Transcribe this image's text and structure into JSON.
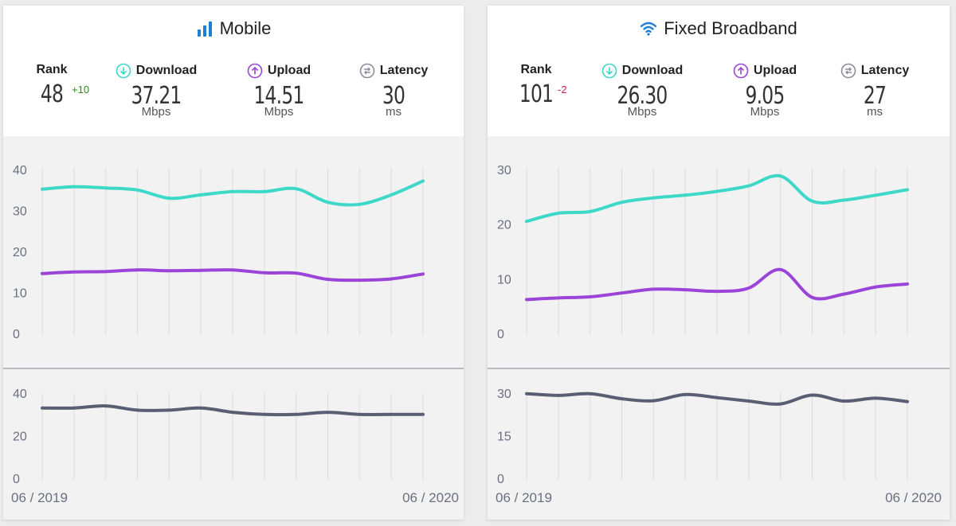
{
  "colors": {
    "download": "#3ed8c8",
    "upload": "#9b45d8",
    "latency": "#5a5e72",
    "rank_up": "#2e8b1a",
    "rank_down": "#e0143c",
    "icon_blue": "#1e7fd6"
  },
  "mobile": {
    "title": "Mobile",
    "icon": "signal-bars-icon",
    "rank_label": "Rank",
    "rank": "48",
    "rank_change": "+10",
    "download_label": "Download",
    "download": "37.21",
    "download_unit": "Mbps",
    "upload_label": "Upload",
    "upload": "14.51",
    "upload_unit": "Mbps",
    "latency_label": "Latency",
    "latency": "30",
    "latency_unit": "ms",
    "date_start": "06 / 2019",
    "date_end": "06 / 2020"
  },
  "fixed": {
    "title": "Fixed Broadband",
    "icon": "wifi-icon",
    "rank_label": "Rank",
    "rank": "101",
    "rank_change": "-2",
    "download_label": "Download",
    "download": "26.30",
    "download_unit": "Mbps",
    "upload_label": "Upload",
    "upload": "9.05",
    "upload_unit": "Mbps",
    "latency_label": "Latency",
    "latency": "27",
    "latency_unit": "ms",
    "date_start": "06 / 2019",
    "date_end": "06 / 2020"
  },
  "chart_data": [
    {
      "type": "line",
      "panel": "mobile-speed",
      "x": [
        "06/2019",
        "07/2019",
        "08/2019",
        "09/2019",
        "10/2019",
        "11/2019",
        "12/2019",
        "01/2020",
        "02/2020",
        "03/2020",
        "04/2020",
        "05/2020",
        "06/2020"
      ],
      "yticks": [
        0,
        10,
        20,
        30,
        40
      ],
      "ylim": [
        0,
        40
      ],
      "grid": "vertical",
      "series": [
        {
          "name": "Download",
          "values": [
            35.2,
            35.8,
            35.5,
            35.0,
            33.0,
            33.8,
            34.6,
            34.6,
            35.3,
            32.0,
            31.5,
            33.8,
            37.21
          ]
        },
        {
          "name": "Upload",
          "values": [
            14.6,
            15.0,
            15.1,
            15.5,
            15.3,
            15.4,
            15.5,
            14.8,
            14.7,
            13.2,
            13.0,
            13.3,
            14.51
          ]
        }
      ]
    },
    {
      "type": "line",
      "panel": "mobile-latency",
      "x": [
        "06/2019",
        "07/2019",
        "08/2019",
        "09/2019",
        "10/2019",
        "11/2019",
        "12/2019",
        "01/2020",
        "02/2020",
        "03/2020",
        "04/2020",
        "05/2020",
        "06/2020"
      ],
      "yticks": [
        0,
        20,
        40
      ],
      "ylim": [
        0,
        40
      ],
      "grid": "vertical",
      "series": [
        {
          "name": "Latency",
          "values": [
            33,
            33,
            34,
            32,
            32,
            33,
            31,
            30,
            30,
            31,
            30,
            30,
            30
          ]
        }
      ]
    },
    {
      "type": "line",
      "panel": "fixed-speed",
      "x": [
        "06/2019",
        "07/2019",
        "08/2019",
        "09/2019",
        "10/2019",
        "11/2019",
        "12/2019",
        "01/2020",
        "02/2020",
        "03/2020",
        "04/2020",
        "05/2020",
        "06/2020"
      ],
      "yticks": [
        0,
        10,
        20,
        30
      ],
      "ylim": [
        0,
        30
      ],
      "grid": "vertical",
      "series": [
        {
          "name": "Download",
          "values": [
            20.5,
            22.0,
            22.3,
            24.0,
            24.8,
            25.3,
            26.0,
            27.0,
            28.8,
            24.2,
            24.4,
            25.3,
            26.3
          ]
        },
        {
          "name": "Upload",
          "values": [
            6.2,
            6.5,
            6.7,
            7.4,
            8.1,
            8.0,
            7.7,
            8.3,
            11.7,
            6.6,
            7.2,
            8.5,
            9.05
          ]
        }
      ]
    },
    {
      "type": "line",
      "panel": "fixed-latency",
      "x": [
        "06/2019",
        "07/2019",
        "08/2019",
        "09/2019",
        "10/2019",
        "11/2019",
        "12/2019",
        "01/2020",
        "02/2020",
        "03/2020",
        "04/2020",
        "05/2020",
        "06/2020"
      ],
      "yticks": [
        0,
        15,
        30
      ],
      "ylim": [
        0,
        30
      ],
      "grid": "vertical",
      "series": [
        {
          "name": "Latency",
          "values": [
            29.8,
            29.2,
            29.8,
            28.0,
            27.3,
            29.5,
            28.4,
            27.2,
            26.2,
            29.3,
            27.2,
            28.2,
            27.0
          ]
        }
      ]
    }
  ]
}
